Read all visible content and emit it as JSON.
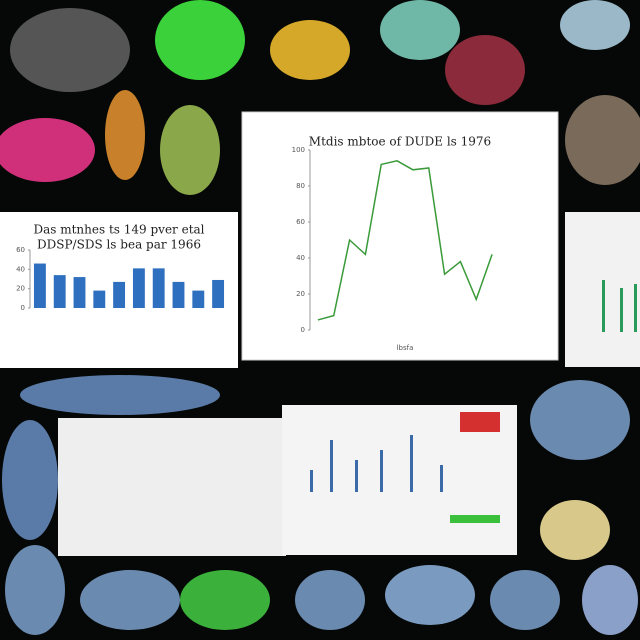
{
  "chart_data": [
    {
      "type": "line",
      "title": "Mtdis mbtoe of DUDE ls 1976",
      "x_label": "lbsfa",
      "categories": [
        null,
        null,
        null,
        null,
        null,
        null,
        null,
        null,
        null,
        null,
        null,
        null
      ],
      "series": [
        {
          "name": null,
          "color": "#3a9a3a",
          "values": [
            5.6,
            8,
            50,
            42,
            92,
            94,
            89,
            90,
            31,
            38,
            17,
            42
          ]
        }
      ],
      "ylim": [
        0,
        100
      ],
      "yticks": [
        0,
        20,
        40,
        60,
        80,
        100
      ]
    },
    {
      "type": "bar",
      "title": "Das mtnhes ts 149 pver etal",
      "subtitle": "DDSP/SDS ls bea par 1966",
      "categories": [
        null,
        null,
        null,
        null,
        null,
        null,
        null,
        null,
        null,
        null
      ],
      "values": [
        46,
        34,
        32,
        18,
        27,
        41,
        41,
        27,
        18,
        29
      ],
      "color": "#2f6fbf",
      "ylim": [
        0,
        60
      ],
      "yticks": [
        0,
        20,
        40,
        60
      ]
    }
  ]
}
